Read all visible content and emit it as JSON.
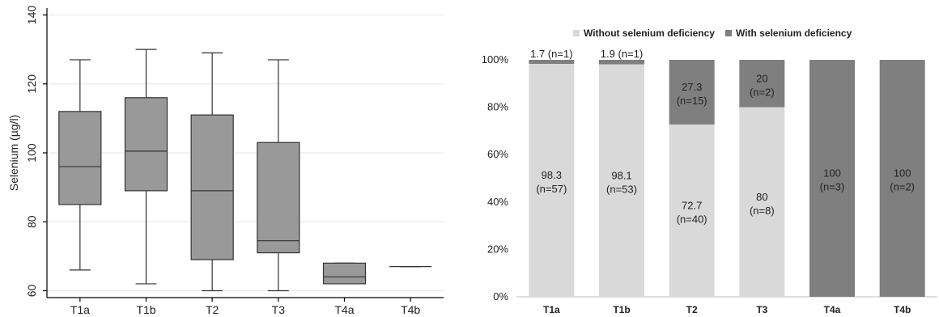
{
  "chart_data": [
    {
      "type": "box",
      "ylabel": "Selenium (µg/l)",
      "ylim": [
        58,
        142
      ],
      "yticks": [
        60,
        80,
        100,
        120,
        140
      ],
      "grid": true,
      "categories": [
        "T1a",
        "T1b",
        "T2",
        "T3",
        "T4a",
        "T4b"
      ],
      "boxes": [
        {
          "min": 66,
          "q1": 85,
          "median": 96,
          "q3": 112,
          "max": 127
        },
        {
          "min": 62,
          "q1": 89,
          "median": 100.5,
          "q3": 116,
          "max": 130
        },
        {
          "min": 60,
          "q1": 69,
          "median": 89,
          "q3": 111,
          "max": 129
        },
        {
          "min": 60,
          "q1": 71,
          "median": 74.5,
          "q3": 103,
          "max": 127
        },
        {
          "min": 62,
          "q1": 62,
          "median": 64,
          "q3": 68,
          "max": 68
        },
        {
          "min": 67,
          "q1": 67,
          "median": 67,
          "q3": 67,
          "max": 67
        }
      ],
      "colors": {
        "box": "#999999"
      }
    },
    {
      "type": "bar",
      "stacked": true,
      "categories": [
        "T1a",
        "T1b",
        "T2",
        "T3",
        "T4a",
        "T4b"
      ],
      "ylim": [
        0,
        100
      ],
      "yticks": [
        "0%",
        "20%",
        "40%",
        "60%",
        "80%",
        "100%"
      ],
      "legend_position": "top",
      "series": [
        {
          "name": "Without selenium deficiency",
          "color": "#d9d9d9",
          "values": [
            98.3,
            98.1,
            72.7,
            80,
            0,
            0
          ],
          "labels": [
            [
              "98.3",
              "(n=57)"
            ],
            [
              "98.1",
              "(n=53)"
            ],
            [
              "72.7",
              "(n=40)"
            ],
            [
              "80",
              "(n=8)"
            ],
            null,
            null
          ]
        },
        {
          "name": "With selenium deficiency",
          "color": "#7f7f7f",
          "values": [
            1.7,
            1.9,
            27.3,
            20,
            100,
            100
          ],
          "labels": [
            [
              "1.7 (n=1)"
            ],
            [
              "1.9 (n=1)"
            ],
            [
              "27.3",
              "(n=15)"
            ],
            [
              "20",
              "(n=2)"
            ],
            [
              "100",
              "(n=3)"
            ],
            [
              "100",
              "(n=2)"
            ]
          ]
        }
      ]
    }
  ]
}
